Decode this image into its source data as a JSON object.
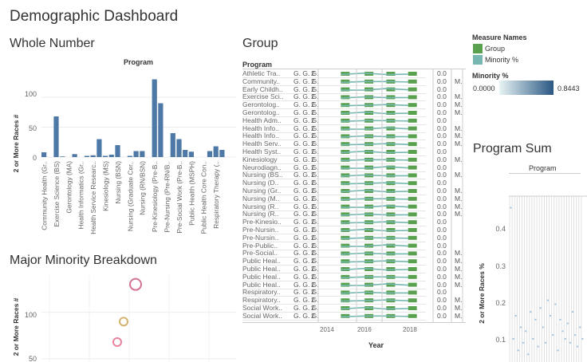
{
  "dashboard": {
    "title": "Demographic Dashboard"
  },
  "whole_number": {
    "title": "Whole Number",
    "header": "Program",
    "ylabel": "2 or More Races #",
    "yticks": [
      "100",
      "50",
      "0"
    ]
  },
  "group": {
    "title": "Group",
    "header": "Program",
    "col_g": "G.",
    "col_count": "2",
    "col_value": "0.0",
    "col_m": "M.",
    "xlabel": "Year",
    "xticks": [
      "2014",
      "2016",
      "2018"
    ]
  },
  "legend": {
    "title": "Measure Names",
    "items": [
      {
        "label": "Group",
        "color": "#59a14f"
      },
      {
        "label": "Minority %",
        "color": "#76b7b2"
      }
    ],
    "gradient_title": "Minority %",
    "gradient_min": "0.0000",
    "gradient_max": "0.8443"
  },
  "program_sum": {
    "title": "Program Sum",
    "header": "Program",
    "ylabel": "2 or More Races %",
    "yticks": [
      "0.4",
      "0.3",
      "0.2",
      "0.1"
    ]
  },
  "major_minority": {
    "title": "Major Minority Breakdown",
    "ylabel": "2 or More Races #",
    "yticks": [
      "100",
      "50"
    ]
  },
  "chart_data": [
    {
      "type": "bar",
      "title": "Whole Number",
      "ylabel": "2 or More Races #",
      "ylim": [
        0,
        140
      ],
      "categories": [
        "Community Health (Gr..",
        "",
        "Exercise Science (BS)",
        "",
        "Gerontology (MA)",
        "",
        "Health Informatics (Gr..",
        "",
        "Health Service Researc..",
        "",
        "Kinesiology (MS)",
        "",
        "Nursing (BSN)",
        "",
        "Nursing (Graduate Cer..",
        "",
        "Nursing (RN/BSN)",
        "",
        "Pre-Kinesiology (Pre-B..",
        "",
        "Pre-Nursing (Pre-RN/B..",
        "",
        "Pre-Social Work (Pre-B..",
        "",
        "Public Health (MSPH)",
        "",
        "Public Health Core Con..",
        "",
        "Respiratory Therapy (..",
        ""
      ],
      "values": [
        8,
        0,
        68,
        1,
        0,
        5,
        0,
        2,
        3,
        30,
        2,
        4,
        20,
        0,
        2,
        10,
        10,
        0,
        130,
        90,
        0,
        40,
        30,
        12,
        9,
        0,
        0,
        10,
        18,
        12
      ]
    },
    {
      "type": "scatter",
      "title": "Major Minority Breakdown",
      "ylabel": "2 or More Races #",
      "ylim": [
        50,
        140
      ],
      "points": [
        {
          "y": 130,
          "color": "#d37295"
        },
        {
          "y": 90,
          "color": "#d4b26e"
        },
        {
          "y": 68,
          "color": "#e8849c"
        }
      ]
    },
    {
      "type": "line",
      "title": "Group",
      "xlabel": "Year",
      "xticks": [
        2014,
        2016,
        2018
      ],
      "categories": [
        "Athletic Tra..",
        "Community..",
        "Early Childh..",
        "Exercise Sci..",
        "Gerontolog..",
        "Gerontolog..",
        "Health Adm..",
        "Health Info..",
        "Health Info..",
        "Health Serv..",
        "Health Syst..",
        "Kinesiology",
        "Neurodiagn..",
        "Nursing (BS..",
        "Nursing (D..",
        "Nursing (Gr..",
        "Nursing (M..",
        "Nursing (R..",
        "Nursing (R..",
        "Pre-Kinesio..",
        "Pre-Nursin..",
        "Pre-Nursin..",
        "Pre-Public..",
        "Pre-Social..",
        "Public Heal..",
        "Public Heal..",
        "Public Heal..",
        "Public Heal..",
        "Respiratory..",
        "Respiratory..",
        "Social Work..",
        "Social Work.."
      ],
      "show_m": [
        false,
        true,
        false,
        true,
        true,
        true,
        false,
        true,
        true,
        true,
        false,
        true,
        false,
        true,
        false,
        true,
        true,
        true,
        true,
        false,
        false,
        false,
        false,
        true,
        true,
        true,
        true,
        true,
        false,
        true,
        true,
        true
      ]
    },
    {
      "type": "scatter",
      "title": "Program Sum",
      "ylabel": "2 or More Races %",
      "ylim": [
        0.06,
        0.49
      ],
      "y": [
        0.46,
        0.12,
        0.18,
        0.09,
        0.15,
        0.11,
        0.14,
        0.08,
        0.19,
        0.12,
        0.17,
        0.1,
        0.2,
        0.15,
        0.11,
        0.22,
        0.18,
        0.13,
        0.21,
        0.09,
        0.17,
        0.14,
        0.12,
        0.16,
        0.11,
        0.19,
        0.13,
        0.1,
        0.15,
        0.12
      ]
    }
  ]
}
